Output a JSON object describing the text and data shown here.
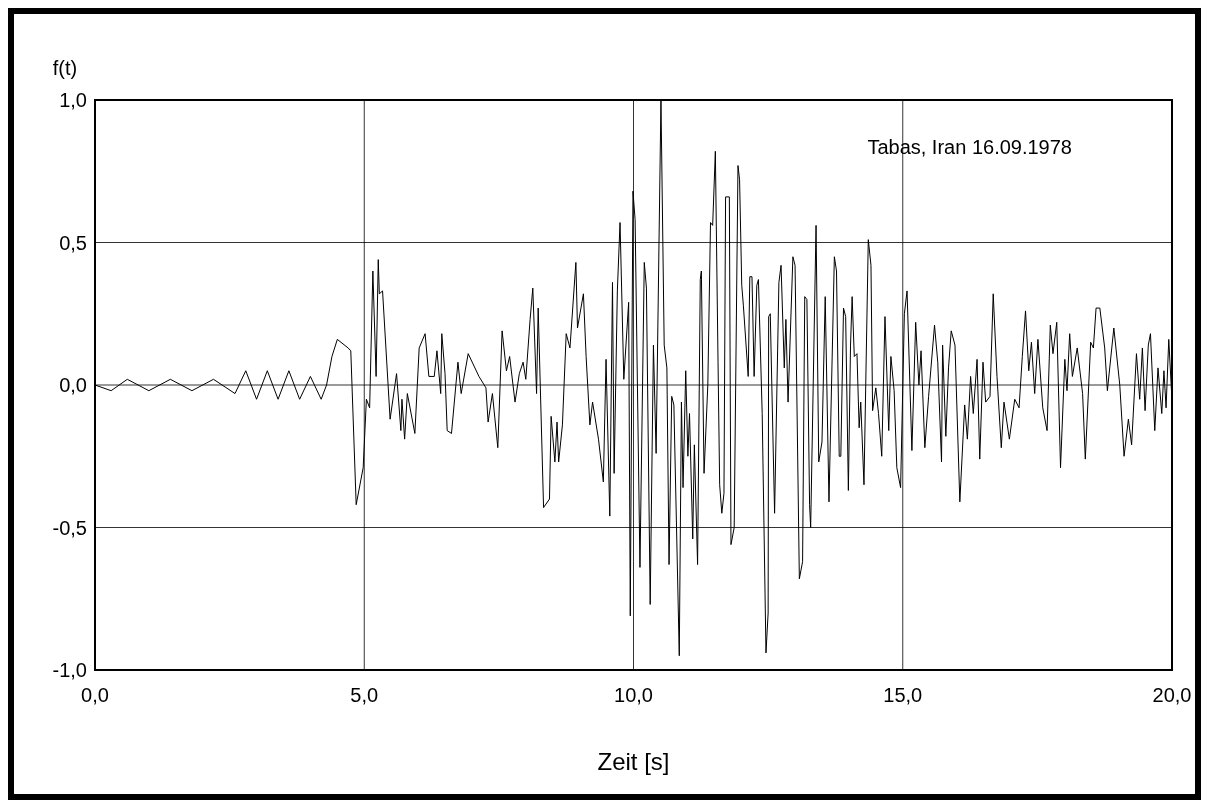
{
  "chart_data": {
    "type": "line",
    "ylabel": "f(t)",
    "xlabel": "Zeit [s]",
    "annotations": [
      "Tabas, Iran 16.09.1978"
    ],
    "xlim": [
      0,
      20
    ],
    "xticks": [
      {
        "value": 0,
        "label": "0,0"
      },
      {
        "value": 5,
        "label": "5,0"
      },
      {
        "value": 10,
        "label": "10,0"
      },
      {
        "value": 15,
        "label": "15,0"
      },
      {
        "value": 20,
        "label": "20,0"
      }
    ],
    "ylim": [
      -1,
      1
    ],
    "yticks": [
      {
        "value": -1,
        "label": "-1,0"
      },
      {
        "value": -0.5,
        "label": "-0,5"
      },
      {
        "value": 0,
        "label": "0,0"
      },
      {
        "value": 0.5,
        "label": "0,5"
      },
      {
        "value": 1,
        "label": "1,0"
      }
    ],
    "grid": true,
    "marker": "none",
    "line_style": "solid",
    "series": [
      {
        "color": "#000000",
        "x": [
          0,
          0.3,
          0.6,
          1.0,
          1.4,
          1.8,
          2.2,
          2.6,
          2.8,
          3.0,
          3.2,
          3.4,
          3.6,
          3.8,
          4.0,
          4.2,
          4.3,
          4.4,
          4.5,
          4.7,
          4.75,
          4.85,
          4.98,
          5.04,
          5.1,
          5.16,
          5.22,
          5.26,
          5.28,
          5.34,
          5.48,
          5.6,
          5.68,
          5.7,
          5.75,
          5.8,
          5.94,
          6.02,
          6.13,
          6.2,
          6.3,
          6.35,
          6.42,
          6.44,
          6.5,
          6.54,
          6.62,
          6.74,
          6.8,
          6.93,
          7.13,
          7.26,
          7.3,
          7.38,
          7.48,
          7.56,
          7.64,
          7.7,
          7.8,
          7.88,
          7.95,
          8.0,
          8.08,
          8.13,
          8.2,
          8.23,
          8.33,
          8.44,
          8.47,
          8.54,
          8.58,
          8.61,
          8.68,
          8.75,
          8.82,
          8.93,
          8.96,
          9.07,
          9.12,
          9.19,
          9.24,
          9.35,
          9.44,
          9.49,
          9.56,
          9.61,
          9.64,
          9.7,
          9.75,
          9.82,
          9.91,
          9.94,
          9.99,
          10.03,
          10.12,
          10.2,
          10.24,
          10.31,
          10.37,
          10.42,
          10.51,
          10.57,
          10.62,
          10.66,
          10.71,
          10.75,
          10.85,
          10.89,
          10.92,
          10.97,
          11.01,
          11.04,
          11.1,
          11.13,
          11.19,
          11.24,
          11.26,
          11.31,
          11.38,
          11.43,
          11.47,
          11.52,
          11.57,
          11.6,
          11.64,
          11.68,
          11.71,
          11.78,
          11.81,
          11.87,
          11.94,
          11.97,
          12.01,
          12.04,
          12.13,
          12.16,
          12.2,
          12.24,
          12.29,
          12.32,
          12.39,
          12.46,
          12.5,
          12.51,
          12.54,
          12.62,
          12.7,
          12.74,
          12.8,
          12.83,
          12.87,
          12.96,
          13.0,
          13.08,
          13.14,
          13.18,
          13.22,
          13.27,
          13.29,
          13.39,
          13.44,
          13.5,
          13.56,
          13.63,
          13.73,
          13.77,
          13.82,
          13.85,
          13.9,
          13.94,
          13.99,
          14.03,
          14.06,
          14.1,
          14.15,
          14.19,
          14.22,
          14.28,
          14.36,
          14.41,
          14.44,
          14.5,
          14.55,
          14.61,
          14.67,
          14.74,
          14.78,
          14.84,
          14.89,
          14.96,
          15.03,
          15.08,
          15.17,
          15.24,
          15.3,
          15.34,
          15.41,
          15.48,
          15.59,
          15.65,
          15.72,
          15.74,
          15.8,
          15.85,
          15.9,
          15.97,
          16.06,
          16.15,
          16.2,
          16.26,
          16.31,
          16.38,
          16.43,
          16.49,
          16.54,
          16.62,
          16.68,
          16.75,
          16.83,
          16.88,
          16.98,
          17.08,
          17.16,
          17.22,
          17.28,
          17.34,
          17.39,
          17.45,
          17.51,
          17.6,
          17.68,
          17.74,
          17.79,
          17.86,
          17.93,
          18.01,
          18.05,
          18.1,
          18.15,
          18.24,
          18.34,
          18.39,
          18.49,
          18.54,
          18.59,
          18.66,
          18.75,
          18.8,
          18.92,
          19.03,
          19.11,
          19.19,
          19.25,
          19.34,
          19.4,
          19.45,
          19.5,
          19.56,
          19.6,
          19.68,
          19.74,
          19.81,
          19.85,
          19.89,
          19.94,
          19.99
        ],
        "values": [
          0,
          -0.02,
          0.02,
          -0.02,
          0.02,
          -0.02,
          0.02,
          -0.03,
          0.05,
          -0.05,
          0.05,
          -0.05,
          0.05,
          -0.05,
          0.03,
          -0.05,
          0,
          0.1,
          0.16,
          0.13,
          0.12,
          -0.42,
          -0.29,
          -0.05,
          -0.08,
          0.4,
          0.03,
          0.44,
          0.32,
          0.33,
          -0.12,
          0.04,
          -0.16,
          -0.05,
          -0.19,
          -0.03,
          -0.17,
          0.13,
          0.18,
          0.03,
          0.03,
          0.12,
          -0.03,
          0.18,
          0.04,
          -0.16,
          -0.17,
          0.08,
          -0.03,
          0.11,
          0.03,
          -0.01,
          -0.13,
          -0.03,
          -0.22,
          0.19,
          0.05,
          0.1,
          -0.06,
          0.04,
          0.08,
          0.02,
          0.23,
          0.34,
          -0.03,
          0.27,
          -0.43,
          -0.4,
          -0.11,
          -0.27,
          -0.13,
          -0.27,
          -0.14,
          0.18,
          0.13,
          0.43,
          0.2,
          0.32,
          0.1,
          -0.14,
          -0.06,
          -0.19,
          -0.34,
          0.09,
          -0.46,
          0.36,
          -0.31,
          0.33,
          0.57,
          0.02,
          0.29,
          -0.81,
          0.68,
          0.58,
          -0.64,
          0.43,
          0.34,
          -0.77,
          0.14,
          -0.24,
          1.0,
          0.14,
          0.06,
          -0.63,
          -0.04,
          -0.07,
          -0.95,
          -0.06,
          -0.36,
          0.05,
          -0.25,
          -0.1,
          -0.54,
          -0.21,
          -0.63,
          0.37,
          0.4,
          -0.31,
          0,
          0.57,
          0.56,
          0.82,
          0.08,
          -0.35,
          -0.45,
          -0.38,
          0.66,
          0.66,
          -0.56,
          -0.5,
          0.77,
          0.72,
          0.35,
          0.28,
          0.03,
          0.38,
          0.38,
          0.03,
          0.35,
          0.37,
          -0.1,
          -0.94,
          -0.8,
          0.24,
          0.25,
          -0.45,
          0.36,
          0.42,
          0.06,
          0.23,
          -0.06,
          0.45,
          0.42,
          -0.68,
          -0.62,
          0.31,
          0.3,
          -0.42,
          -0.5,
          0.56,
          -0.27,
          -0.2,
          0.31,
          -0.41,
          0.45,
          0.4,
          -0.25,
          -0.25,
          0.27,
          0.24,
          -0.37,
          0.14,
          0.31,
          0.1,
          0.11,
          -0.15,
          -0.06,
          -0.35,
          0.51,
          0.42,
          -0.09,
          -0.01,
          -0.1,
          -0.25,
          0.24,
          -0.16,
          0.1,
          -0.02,
          -0.29,
          -0.36,
          0.25,
          0.33,
          -0.23,
          0.22,
          0,
          0.12,
          -0.22,
          -0.04,
          0.21,
          0.08,
          -0.27,
          0.14,
          -0.18,
          0.06,
          0.19,
          0.14,
          -0.41,
          -0.07,
          -0.19,
          0.03,
          -0.1,
          0.09,
          -0.26,
          0.08,
          -0.06,
          -0.04,
          0.32,
          0.03,
          -0.22,
          -0.06,
          -0.19,
          -0.05,
          -0.08,
          0.1,
          0.26,
          0.05,
          0.15,
          -0.03,
          0.16,
          -0.08,
          -0.16,
          0.21,
          0.11,
          0.22,
          -0.29,
          0.09,
          -0.02,
          0.18,
          0.03,
          0.13,
          -0.03,
          -0.26,
          0.15,
          0.13,
          0.27,
          0.27,
          0.13,
          -0.02,
          0.2,
          0,
          -0.25,
          -0.12,
          -0.21,
          0.11,
          -0.05,
          0.13,
          -0.09,
          0.14,
          0.18,
          -0.16,
          0.06,
          -0.1,
          0.05,
          -0.08,
          0.16,
          -0.02
        ]
      }
    ]
  }
}
